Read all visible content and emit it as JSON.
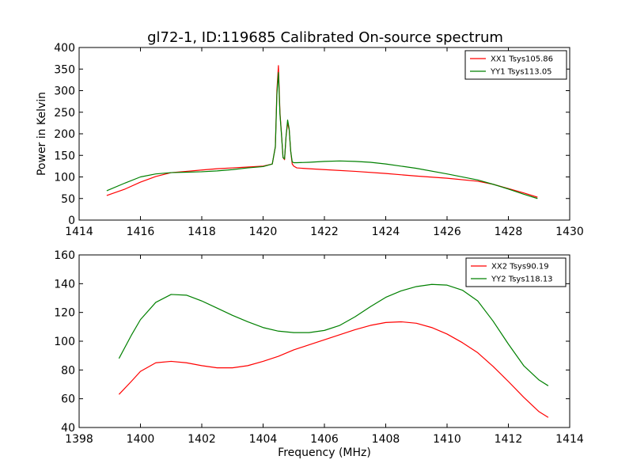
{
  "title": "gl72-1, ID:119685 Calibrated On-source spectrum",
  "colors": {
    "xx": "#ff0000",
    "yy": "#008000",
    "axes": "#000000",
    "background": "#ffffff"
  },
  "chart_data": [
    {
      "type": "line",
      "title": "gl72-1, ID:119685 Calibrated On-source spectrum",
      "xlabel": "",
      "ylabel": "Power in Kelvin",
      "xlim": [
        1414,
        1430
      ],
      "ylim": [
        0,
        400
      ],
      "xticks": [
        "1414",
        "1416",
        "1418",
        "1420",
        "1422",
        "1424",
        "1426",
        "1428",
        "1430"
      ],
      "yticks": [
        "0",
        "50",
        "100",
        "150",
        "200",
        "250",
        "300",
        "350",
        "400"
      ],
      "grid": false,
      "legend_position": "top-right",
      "series": [
        {
          "name": "XX1 Tsys105.86",
          "color": "#ff0000",
          "x": [
            1414.9,
            1415.5,
            1416.0,
            1416.5,
            1417.0,
            1417.5,
            1418.0,
            1418.5,
            1419.0,
            1419.5,
            1420.0,
            1420.3,
            1420.4,
            1420.45,
            1420.5,
            1420.55,
            1420.6,
            1420.65,
            1420.7,
            1420.75,
            1420.8,
            1420.85,
            1420.9,
            1420.95,
            1421.0,
            1421.1,
            1421.3,
            1421.5,
            1422.0,
            1423.0,
            1424.0,
            1425.0,
            1426.0,
            1427.0,
            1427.5,
            1428.0,
            1428.5,
            1428.95
          ],
          "values": [
            57,
            72,
            88,
            101,
            110,
            113,
            116,
            119,
            121,
            123,
            125,
            130,
            170,
            300,
            358,
            250,
            200,
            145,
            140,
            195,
            225,
            210,
            160,
            130,
            125,
            121,
            120,
            119,
            117,
            113,
            108,
            102,
            97,
            90,
            83,
            73,
            63,
            53
          ]
        },
        {
          "name": "YY1 Tsys113.05",
          "color": "#008000",
          "x": [
            1414.9,
            1415.5,
            1416.0,
            1416.5,
            1417.0,
            1417.5,
            1418.0,
            1418.5,
            1419.0,
            1419.5,
            1420.0,
            1420.3,
            1420.4,
            1420.45,
            1420.5,
            1420.55,
            1420.6,
            1420.65,
            1420.7,
            1420.75,
            1420.8,
            1420.85,
            1420.9,
            1420.95,
            1421.0,
            1421.1,
            1421.5,
            1422.0,
            1422.5,
            1423.0,
            1423.5,
            1424.0,
            1425.0,
            1426.0,
            1427.0,
            1427.5,
            1428.0,
            1428.5,
            1428.95
          ],
          "values": [
            68,
            86,
            100,
            107,
            110,
            111,
            112,
            114,
            117,
            121,
            124,
            130,
            170,
            290,
            342,
            245,
            198,
            145,
            142,
            195,
            232,
            212,
            160,
            135,
            133,
            133,
            134,
            136,
            137,
            136,
            134,
            130,
            120,
            107,
            93,
            83,
            72,
            60,
            50
          ]
        }
      ]
    },
    {
      "type": "line",
      "title": "",
      "xlabel": "Frequency (MHz)",
      "ylabel": "",
      "xlim": [
        1398,
        1414
      ],
      "ylim": [
        40,
        160
      ],
      "xticks": [
        "1398",
        "1400",
        "1402",
        "1404",
        "1406",
        "1408",
        "1410",
        "1412",
        "1414"
      ],
      "yticks": [
        "40",
        "60",
        "80",
        "100",
        "120",
        "140",
        "160"
      ],
      "grid": false,
      "legend_position": "top-right",
      "series": [
        {
          "name": "XX2 Tsys90.19",
          "color": "#ff0000",
          "x": [
            1399.3,
            1399.7,
            1400.0,
            1400.5,
            1401.0,
            1401.5,
            1402.0,
            1402.5,
            1403.0,
            1403.5,
            1404.0,
            1404.5,
            1405.0,
            1405.5,
            1406.0,
            1406.5,
            1407.0,
            1407.5,
            1408.0,
            1408.5,
            1409.0,
            1409.5,
            1410.0,
            1410.5,
            1411.0,
            1411.5,
            1412.0,
            1412.5,
            1413.0,
            1413.3
          ],
          "values": [
            63,
            72,
            79,
            85,
            86,
            85,
            83,
            81.5,
            81.5,
            83,
            86,
            89.5,
            94,
            97.5,
            101,
            104.5,
            108,
            111,
            113,
            113.5,
            112.5,
            109.5,
            105,
            99,
            92,
            82.5,
            72,
            61,
            51,
            47
          ]
        },
        {
          "name": "YY2 Tsys118.13",
          "color": "#008000",
          "x": [
            1399.3,
            1399.7,
            1400.0,
            1400.5,
            1401.0,
            1401.5,
            1402.0,
            1402.5,
            1403.0,
            1403.5,
            1404.0,
            1404.5,
            1405.0,
            1405.5,
            1406.0,
            1406.5,
            1407.0,
            1407.5,
            1408.0,
            1408.5,
            1409.0,
            1409.5,
            1410.0,
            1410.5,
            1411.0,
            1411.5,
            1412.0,
            1412.5,
            1413.0,
            1413.3
          ],
          "values": [
            88,
            104,
            115,
            127,
            132.5,
            132,
            128,
            123,
            118,
            113.5,
            109.5,
            107,
            106,
            106,
            107.5,
            111,
            117,
            124,
            130.5,
            135,
            138,
            139.5,
            139,
            135.5,
            128,
            114,
            98,
            83,
            73,
            69
          ]
        }
      ]
    }
  ]
}
